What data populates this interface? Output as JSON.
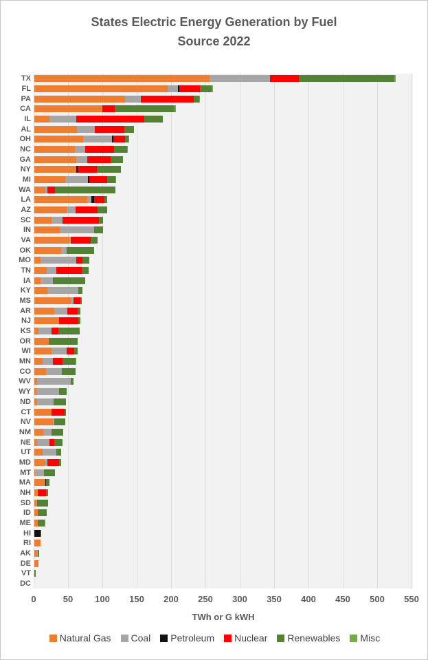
{
  "title": {
    "line1": "States Electric Energy  Generation by Fuel",
    "line2": "Source 2022"
  },
  "chart_data": {
    "type": "bar",
    "orientation": "horizontal",
    "stacked": true,
    "title": "States Electric Energy  Generation by Fuel Source 2022",
    "xlabel": "TWh or G kWH",
    "ylabel": "",
    "xlim": [
      0,
      550
    ],
    "x_ticks": [
      0,
      50,
      100,
      150,
      200,
      250,
      300,
      350,
      400,
      450,
      500,
      550
    ],
    "grid": true,
    "legend_position": "bottom",
    "categories": [
      "TX",
      "FL",
      "PA",
      "CA",
      "IL",
      "AL",
      "OH",
      "NC",
      "GA",
      "NY",
      "MI",
      "WA",
      "LA",
      "AZ",
      "SC",
      "IN",
      "VA",
      "OK",
      "MO",
      "TN",
      "IA",
      "KY",
      "MS",
      "AR",
      "NJ",
      "KS",
      "OR",
      "WI",
      "MN",
      "CO",
      "WV",
      "WY",
      "ND",
      "CT",
      "NV",
      "NM",
      "NE",
      "UT",
      "MD",
      "MT",
      "MA",
      "NH",
      "SD",
      "ID",
      "ME",
      "HI",
      "RI",
      "AK",
      "DE",
      "VT",
      "DC"
    ],
    "series": [
      {
        "name": "Natural Gas",
        "color": "#ED7D31",
        "values": [
          255,
          194,
          132,
          99,
          22,
          62,
          71,
          59,
          61,
          61,
          45,
          16,
          77,
          48,
          25,
          37,
          51,
          39,
          9,
          18,
          9,
          19,
          53,
          29,
          36,
          6,
          21,
          25,
          12,
          17,
          4,
          3,
          4,
          25,
          27,
          13,
          4,
          12,
          15,
          1,
          16,
          5,
          3,
          5,
          5,
          0,
          9,
          4,
          6,
          0,
          0
        ]
      },
      {
        "name": "Coal",
        "color": "#A6A6A6",
        "values": [
          88,
          15,
          23,
          0,
          39,
          26,
          42,
          15,
          16,
          0,
          33,
          3,
          6,
          12,
          16,
          50,
          2,
          8,
          52,
          14,
          18,
          45,
          4,
          19,
          0,
          19,
          0,
          22,
          15,
          23,
          49,
          33,
          24,
          0,
          2,
          12,
          18,
          20,
          4,
          13,
          0,
          0,
          1,
          0,
          0,
          0,
          0,
          1,
          0,
          0,
          0
        ]
      },
      {
        "name": "Petroleum",
        "color": "#111111",
        "values": [
          0,
          2,
          0,
          0,
          0,
          0,
          2,
          0,
          0,
          2,
          2,
          0,
          4,
          0,
          0,
          0,
          0,
          0,
          0,
          0,
          0,
          0,
          0,
          0,
          0,
          0,
          0,
          0,
          0,
          0,
          0,
          0,
          0,
          0,
          0,
          0,
          0,
          0,
          0,
          0,
          1,
          0,
          0,
          0,
          0,
          9,
          0,
          0,
          0,
          0,
          0
        ]
      },
      {
        "name": "Nuclear",
        "color": "#FF0000",
        "values": [
          42,
          30,
          77,
          18,
          99,
          43,
          17,
          42,
          34,
          28,
          26,
          11,
          15,
          32,
          53,
          0,
          29,
          0,
          9,
          37,
          0,
          0,
          10,
          15,
          28,
          10,
          0,
          11,
          14,
          0,
          0,
          0,
          0,
          19,
          0,
          0,
          7,
          0,
          17,
          0,
          0,
          12,
          0,
          0,
          0,
          0,
          0,
          0,
          0,
          0,
          0
        ]
      },
      {
        "name": "Renewables",
        "color": "#538135",
        "values": [
          139,
          17,
          8,
          87,
          27,
          14,
          5,
          19,
          18,
          35,
          12,
          88,
          4,
          14,
          6,
          13,
          10,
          40,
          10,
          10,
          47,
          6,
          2,
          4,
          3,
          31,
          42,
          5,
          19,
          20,
          4,
          11,
          18,
          2,
          16,
          17,
          12,
          7,
          3,
          16,
          5,
          3,
          16,
          13,
          10,
          1,
          0,
          2,
          0,
          2,
          0
        ]
      },
      {
        "name": "Misc",
        "color": "#70AD47",
        "values": [
          2,
          2,
          1,
          2,
          0,
          0,
          1,
          1,
          0,
          0,
          1,
          0,
          0,
          0,
          0,
          0,
          0,
          0,
          0,
          0,
          0,
          0,
          0,
          0,
          0,
          0,
          0,
          0,
          1,
          0,
          0,
          0,
          0,
          0,
          0,
          0,
          0,
          0,
          0,
          0,
          0,
          0,
          0,
          0,
          1,
          0,
          0,
          0,
          0,
          0,
          0
        ]
      }
    ]
  },
  "legend": {
    "items": [
      {
        "label": "Natural Gas",
        "color": "#ED7D31"
      },
      {
        "label": "Coal",
        "color": "#A6A6A6"
      },
      {
        "label": "Petroleum",
        "color": "#111111"
      },
      {
        "label": "Nuclear",
        "color": "#FF0000"
      },
      {
        "label": "Renewables",
        "color": "#538135"
      },
      {
        "label": "Misc",
        "color": "#70AD47"
      }
    ]
  }
}
